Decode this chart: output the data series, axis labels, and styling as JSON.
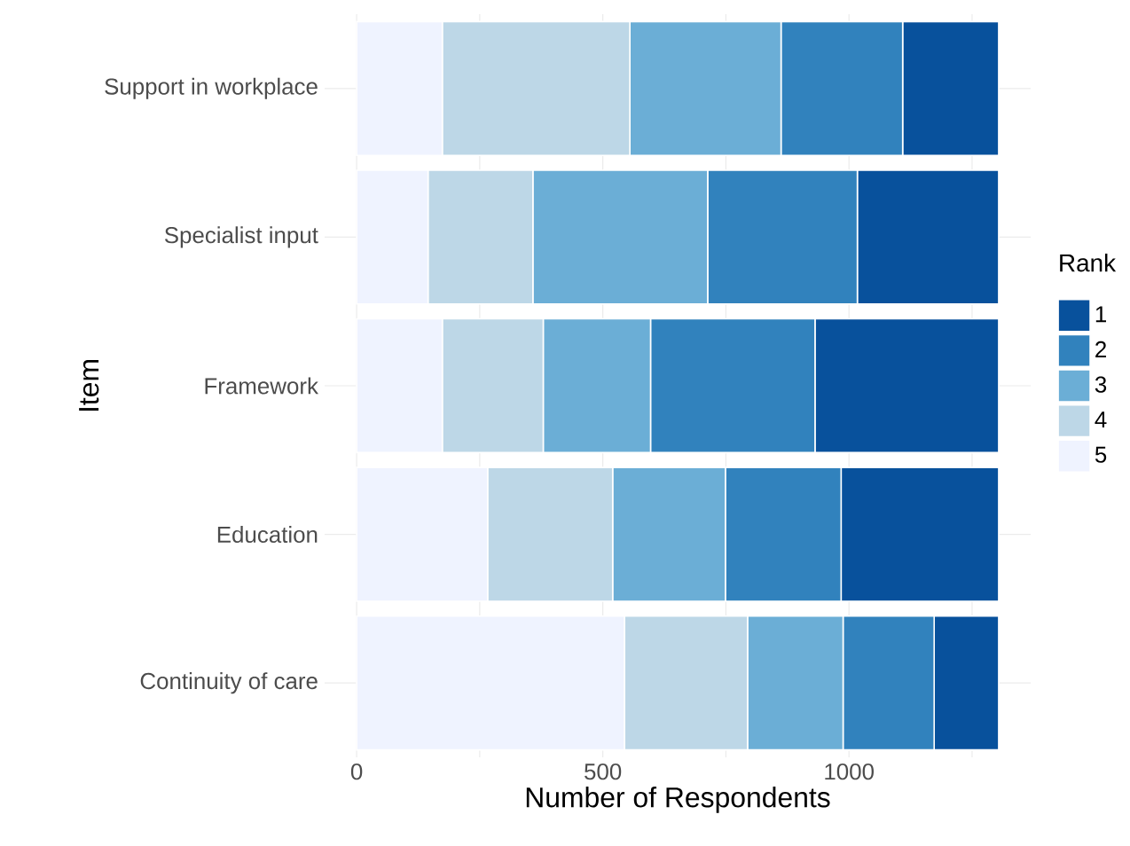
{
  "chart_data": {
    "type": "bar",
    "orientation": "horizontal",
    "stacked": true,
    "xlabel": "Number of Respondents",
    "ylabel": "Item",
    "legend_title": "Rank",
    "legend": "right",
    "grid": true,
    "categories": [
      "Support in workplace",
      "Specialist input",
      "Framework",
      "Education",
      "Continuity of care"
    ],
    "xlim": [
      -65,
      1369
    ],
    "xticks": [
      0,
      {
        "value": 250,
        "label": null
      },
      500,
      {
        "value": 750,
        "label": null
      },
      1000,
      {
        "value": 1250,
        "label": null
      }
    ],
    "series": [
      {
        "name": "5",
        "color": "#eff3ff",
        "values": [
          174,
          145,
          174,
          266,
          544
        ]
      },
      {
        "name": "4",
        "color": "#bdd7e7",
        "values": [
          381,
          213,
          205,
          254,
          250
        ]
      },
      {
        "name": "3",
        "color": "#6baed6",
        "values": [
          307,
          355,
          218,
          229,
          194
        ]
      },
      {
        "name": "2",
        "color": "#3182bd",
        "values": [
          247,
          304,
          334,
          235,
          185
        ]
      },
      {
        "name": "1",
        "color": "#08519c",
        "values": [
          195,
          287,
          373,
          320,
          131
        ]
      }
    ]
  }
}
